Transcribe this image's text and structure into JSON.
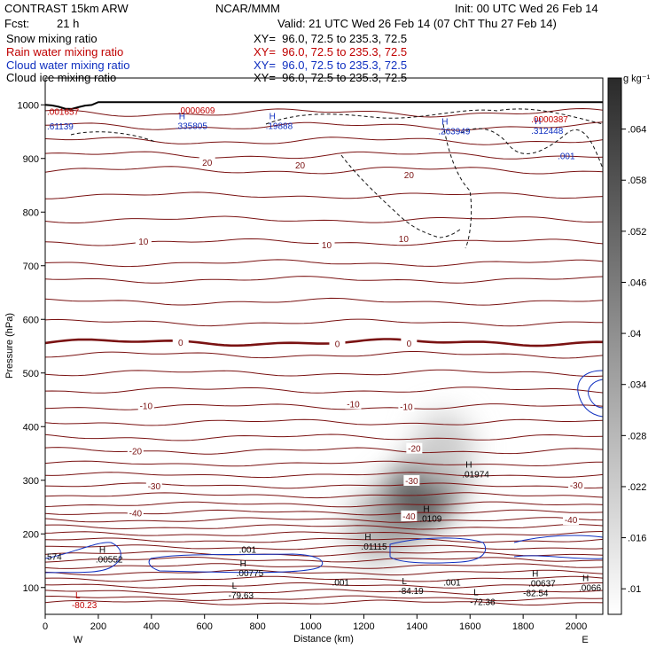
{
  "header": {
    "model": "CONTRAST 15km ARW",
    "org": "NCAR/MMM",
    "init": "Init: 00 UTC Wed 26 Feb 14",
    "fcst_label": "Fcst:",
    "fcst_value": "21 h",
    "valid": "Valid: 21 UTC Wed 26 Feb 14 (07 ChT Thu 27 Feb 14)"
  },
  "fields": [
    {
      "name": "Snow mixing ratio",
      "xy": "XY=  96.0, 72.5 to 235.3, 72.5",
      "color": "#000000"
    },
    {
      "name": "Rain water mixing ratio",
      "xy": "XY=  96.0, 72.5 to 235.3, 72.5",
      "color": "#c00000"
    },
    {
      "name": "Cloud water mixing ratio",
      "xy": "XY=  96.0, 72.5 to 235.3, 72.5",
      "color": "#1030c0"
    },
    {
      "name": "Cloud ice mixing ratio",
      "xy": "XY=  96.0, 72.5 to 235.3, 72.5",
      "color": "#000000"
    }
  ],
  "chart_data": {
    "type": "heatmap",
    "xlabel": "Distance (km)",
    "ylabel": "Pressure (hPa)",
    "xlim": [
      0,
      2100
    ],
    "ylim": [
      1050,
      50
    ],
    "xticks": [
      0,
      200,
      400,
      600,
      800,
      1000,
      1200,
      1400,
      1600,
      1800,
      2000
    ],
    "yticks": [
      100,
      200,
      300,
      400,
      500,
      600,
      700,
      800,
      900,
      1000
    ],
    "endpoints": {
      "left": "W",
      "right": "E"
    },
    "colorbar": {
      "unit": "g kg⁻¹",
      "ticks": [
        ".01",
        ".016",
        ".022",
        ".028",
        ".034",
        ".04",
        ".046",
        ".052",
        ".058",
        ".064"
      ],
      "range": [
        0.007,
        0.07
      ]
    },
    "shading_core": [
      {
        "x": 1250,
        "p": 210,
        "value": 0.028
      },
      {
        "x": 1350,
        "p": 250,
        "value": 0.04
      },
      {
        "x": 1430,
        "p": 280,
        "value": 0.062
      },
      {
        "x": 1480,
        "p": 320,
        "value": 0.052
      },
      {
        "x": 1500,
        "p": 360,
        "value": 0.022
      }
    ],
    "isotherm_labels": [
      {
        "x": 340,
        "p": 238,
        "text": "-40"
      },
      {
        "x": 1370,
        "p": 232,
        "text": "-40"
      },
      {
        "x": 1980,
        "p": 225,
        "text": "-40"
      },
      {
        "x": 410,
        "p": 288,
        "text": "-30"
      },
      {
        "x": 1380,
        "p": 298,
        "text": "-30"
      },
      {
        "x": 2000,
        "p": 290,
        "text": "-30"
      },
      {
        "x": 340,
        "p": 353,
        "text": "-20"
      },
      {
        "x": 1390,
        "p": 358,
        "text": "-20"
      },
      {
        "x": 380,
        "p": 438,
        "text": "-10"
      },
      {
        "x": 1160,
        "p": 441,
        "text": "-10"
      },
      {
        "x": 1360,
        "p": 436,
        "text": "-10"
      },
      {
        "x": 510,
        "p": 556,
        "text": "0"
      },
      {
        "x": 1100,
        "p": 553,
        "text": "0"
      },
      {
        "x": 1370,
        "p": 554,
        "text": "0"
      },
      {
        "x": 370,
        "p": 744,
        "text": "10"
      },
      {
        "x": 1060,
        "p": 738,
        "text": "10"
      },
      {
        "x": 1350,
        "p": 749,
        "text": "10"
      },
      {
        "x": 610,
        "p": 891,
        "text": "20"
      },
      {
        "x": 960,
        "p": 886,
        "text": "20"
      },
      {
        "x": 1370,
        "p": 868,
        "text": "20"
      }
    ],
    "extrema": [
      {
        "x": 100,
        "p": 70,
        "letter": "L",
        "value": "-80.23",
        "color": "#c00000"
      },
      {
        "x": 690,
        "p": 88,
        "letter": "L",
        "value": "-79.63",
        "color": "#000000"
      },
      {
        "x": 1330,
        "p": 96,
        "letter": "L",
        "value": "-84.19",
        "color": "#000000"
      },
      {
        "x": 1600,
        "p": 76,
        "letter": "L",
        "value": "-72.36",
        "color": "#000000"
      },
      {
        "x": 1800,
        "p": 92,
        "letter": "",
        "value": "-82.54",
        "color": "#000000"
      },
      {
        "x": 720,
        "p": 129,
        "letter": "H",
        "value": ".00775",
        "color": "#000000"
      },
      {
        "x": 190,
        "p": 155,
        "letter": "H",
        "value": ".00552",
        "color": "#000000"
      },
      {
        "x": 0,
        "p": 160,
        "letter": "",
        "value": "574",
        "color": "#000000"
      },
      {
        "x": 1190,
        "p": 179,
        "letter": "H",
        "value": ".01115",
        "color": "#000000"
      },
      {
        "x": 1410,
        "p": 231,
        "letter": "H",
        "value": ".0109",
        "color": "#000000"
      },
      {
        "x": 1570,
        "p": 314,
        "letter": "H",
        "value": ".01974",
        "color": "#000000"
      },
      {
        "x": 1820,
        "p": 110,
        "letter": "H",
        "value": ".00637",
        "color": "#000000"
      },
      {
        "x": 2010,
        "p": 102,
        "letter": "H",
        "value": ".0066",
        "color": "#000000"
      },
      {
        "x": 0,
        "p": 962,
        "letter": "",
        "value": ".61139",
        "color": "#1030c0"
      },
      {
        "x": 490,
        "p": 963,
        "letter": "H",
        "value": ".335805",
        "color": "#1030c0"
      },
      {
        "x": 830,
        "p": 963,
        "letter": "H",
        "value": ".19888",
        "color": "#1030c0"
      },
      {
        "x": 1480,
        "p": 953,
        "letter": "H",
        "value": ".263949",
        "color": "#1030c0"
      },
      {
        "x": 1830,
        "p": 954,
        "letter": "H",
        "value": ".312448",
        "color": "#1030c0"
      },
      {
        "x": 0,
        "p": 990,
        "letter": "",
        "value": ".001657",
        "color": "#c00000"
      },
      {
        "x": 500,
        "p": 992,
        "letter": "",
        "value": ".0000609",
        "color": "#c00000"
      },
      {
        "x": 1830,
        "p": 976,
        "letter": "",
        "value": ".0000387",
        "color": "#c00000"
      }
    ],
    "contour_value_labels": [
      {
        "x": 1080,
        "p": 109,
        "text": ".001",
        "color": "#000000"
      },
      {
        "x": 1500,
        "p": 109,
        "text": ".001",
        "color": "#000000"
      },
      {
        "x": 730,
        "p": 170,
        "text": ".001",
        "color": "#000000"
      },
      {
        "x": 1930,
        "p": 904,
        "text": ".001",
        "color": "#1030c0"
      }
    ]
  }
}
